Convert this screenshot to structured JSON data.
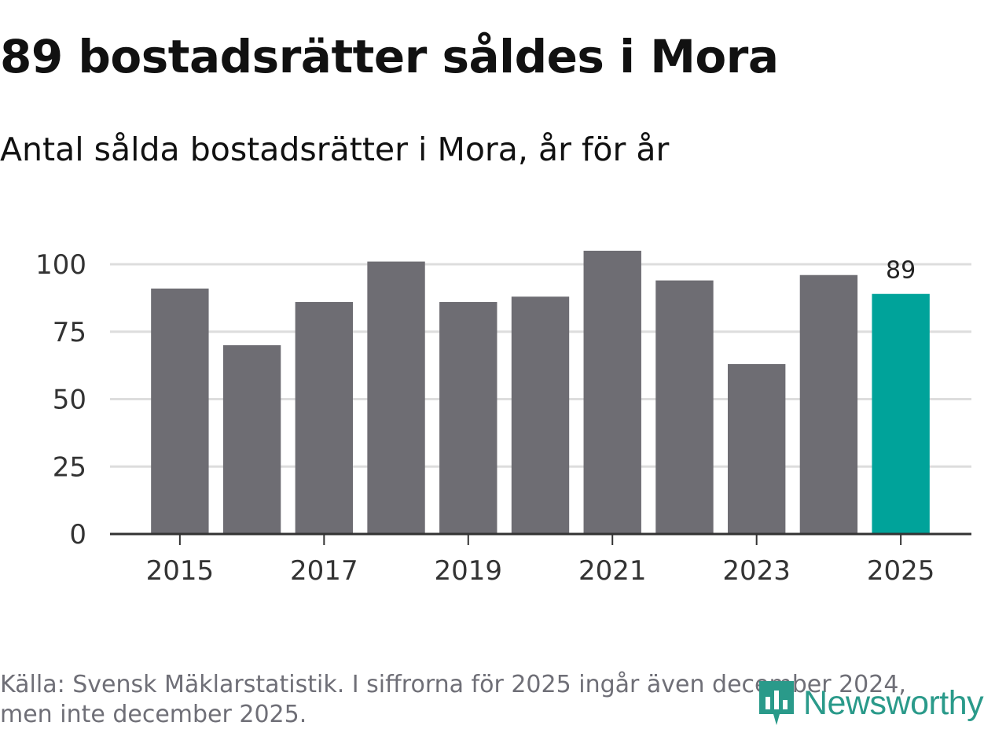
{
  "header": {
    "title": "89 bostadsrätter såldes i Mora",
    "subtitle": "Antal sålda bostadsrätter i Mora, år för år"
  },
  "chart_data": {
    "type": "bar",
    "title": "89 bostadsrätter såldes i Mora",
    "subtitle": "Antal sålda bostadsrätter i Mora, år för år",
    "xlabel": "",
    "ylabel": "",
    "categories": [
      "2015",
      "2016",
      "2017",
      "2018",
      "2019",
      "2020",
      "2021",
      "2022",
      "2023",
      "2024",
      "2025"
    ],
    "values": [
      91,
      70,
      86,
      101,
      86,
      88,
      105,
      94,
      63,
      96,
      89
    ],
    "x_tick_labels": [
      "2015",
      "2017",
      "2019",
      "2021",
      "2023",
      "2025"
    ],
    "y_ticks": [
      0,
      25,
      50,
      75,
      100
    ],
    "ylim": [
      0,
      105
    ],
    "grid": true,
    "highlight_index": 10,
    "highlight_label": "89",
    "colors": {
      "bar": "#6e6d73",
      "highlight": "#00a39a",
      "grid": "#dddddd",
      "axis": "#333333"
    }
  },
  "footer": {
    "source_line1": "Källa: Svensk Mäklarstatistik. I siffrorna för 2025 ingår även december 2024,",
    "source_line2": "men inte december 2025.",
    "logo_text": "Newsworthy",
    "logo_color": "#2a9a8a"
  }
}
